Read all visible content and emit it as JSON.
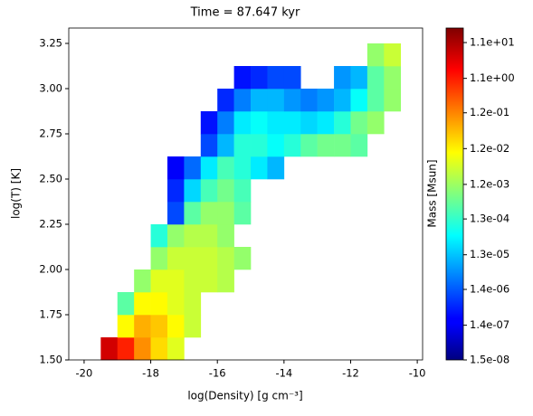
{
  "chart_data": {
    "type": "histogram2d",
    "title": "Time = 87.647 kyr",
    "xlabel": "log(Density) [g cm⁻³]",
    "ylabel": "log(T) [K]",
    "colorbar_label": "Mass [Msun]",
    "colormap": "jet",
    "zscale": "log",
    "xlim": [
      -20.46,
      -9.84
    ],
    "xticks": [
      -20,
      -18,
      -16,
      -14,
      -12,
      -10
    ],
    "ylim": [
      1.5,
      3.335
    ],
    "yticks": [
      {
        "value": 1.5,
        "label": "1.50"
      },
      1.75,
      {
        "value": 2.0,
        "label": "2.00"
      },
      2.25,
      {
        "value": 2.5,
        "label": "2.50"
      },
      2.75,
      {
        "value": 3.0,
        "label": "3.00"
      },
      3.25
    ],
    "zlim": [
      1.5e-08,
      28
    ],
    "zticks": [
      {
        "value": 1.5e-08,
        "label": "1.5e-08"
      },
      {
        "value": 1.4e-07,
        "label": "1.4e-07"
      },
      {
        "value": 1.4e-06,
        "label": "1.4e-06"
      },
      {
        "value": 1.3e-05,
        "label": "1.3e-05"
      },
      {
        "value": 0.00013,
        "label": "1.3e-04"
      },
      {
        "value": 0.0012,
        "label": "1.2e-03"
      },
      {
        "value": 0.012,
        "label": "1.2e-02"
      },
      {
        "value": 0.12,
        "label": "1.2e-01"
      },
      {
        "value": 1.1,
        "label": "1.1e+00"
      },
      {
        "value": 11,
        "label": "1.1e+01"
      }
    ],
    "xbins": [
      -19.5,
      -19,
      -18.5,
      -18,
      -17.5,
      -17,
      -16.5,
      -16,
      -15.5,
      -15,
      -14.5,
      -14,
      -13.5,
      -13,
      -12.5,
      -12,
      -11.5,
      -11,
      -10.5
    ],
    "ybins": [
      1.5,
      1.625,
      1.75,
      1.875,
      2.0,
      2.125,
      2.25,
      2.375,
      2.5,
      2.625,
      2.75,
      2.875,
      3.0,
      3.125,
      3.25
    ],
    "z": [
      [
        5,
        1,
        0.1,
        0.02,
        0.005,
        null,
        null,
        null,
        null,
        null,
        null,
        null,
        null,
        null,
        null,
        null,
        null,
        null
      ],
      [
        null,
        0.01,
        0.05,
        0.03,
        0.01,
        0.003,
        null,
        null,
        null,
        null,
        null,
        null,
        null,
        null,
        null,
        null,
        null,
        null
      ],
      [
        null,
        0.0003,
        0.01,
        0.01,
        0.005,
        0.003,
        null,
        null,
        null,
        null,
        null,
        null,
        null,
        null,
        null,
        null,
        null,
        null
      ],
      [
        null,
        null,
        0.001,
        0.005,
        0.005,
        0.003,
        0.003,
        0.002,
        null,
        null,
        null,
        null,
        null,
        null,
        null,
        null,
        null,
        null
      ],
      [
        null,
        null,
        null,
        0.001,
        0.003,
        0.003,
        0.003,
        0.002,
        0.001,
        null,
        null,
        null,
        null,
        null,
        null,
        null,
        null,
        null
      ],
      [
        null,
        null,
        null,
        0.0001,
        0.001,
        0.002,
        0.002,
        0.001,
        null,
        null,
        null,
        null,
        null,
        null,
        null,
        null,
        null,
        null
      ],
      [
        null,
        null,
        null,
        null,
        1e-06,
        0.0003,
        0.001,
        0.001,
        0.0003,
        null,
        null,
        null,
        null,
        null,
        null,
        null,
        null,
        null
      ],
      [
        null,
        null,
        null,
        null,
        5e-07,
        2e-05,
        0.0002,
        0.0005,
        0.0002,
        null,
        null,
        null,
        null,
        null,
        null,
        null,
        null,
        null
      ],
      [
        null,
        null,
        null,
        null,
        2e-07,
        2e-06,
        3e-05,
        0.0002,
        0.0001,
        3e-05,
        1e-05,
        null,
        null,
        null,
        null,
        null,
        null,
        null
      ],
      [
        null,
        null,
        null,
        null,
        null,
        null,
        1e-06,
        1e-05,
        0.0001,
        0.0001,
        5e-05,
        0.0001,
        0.0003,
        0.0005,
        0.0005,
        0.0003,
        null,
        null
      ],
      [
        null,
        null,
        null,
        null,
        null,
        null,
        3e-07,
        3e-06,
        3e-05,
        5e-05,
        3e-05,
        3e-05,
        2e-05,
        3e-05,
        0.0001,
        0.0005,
        0.001,
        null
      ],
      [
        null,
        null,
        null,
        null,
        null,
        null,
        null,
        5e-07,
        3e-06,
        1e-05,
        1e-05,
        5e-06,
        3e-06,
        5e-06,
        1e-05,
        5e-05,
        0.0003,
        0.001
      ],
      [
        null,
        null,
        null,
        null,
        null,
        null,
        null,
        null,
        3e-07,
        5e-07,
        1e-06,
        1e-06,
        null,
        null,
        5e-06,
        1e-05,
        0.0003,
        0.001
      ],
      [
        null,
        null,
        null,
        null,
        null,
        null,
        null,
        null,
        null,
        null,
        null,
        null,
        null,
        null,
        null,
        null,
        0.001,
        0.003
      ]
    ]
  }
}
